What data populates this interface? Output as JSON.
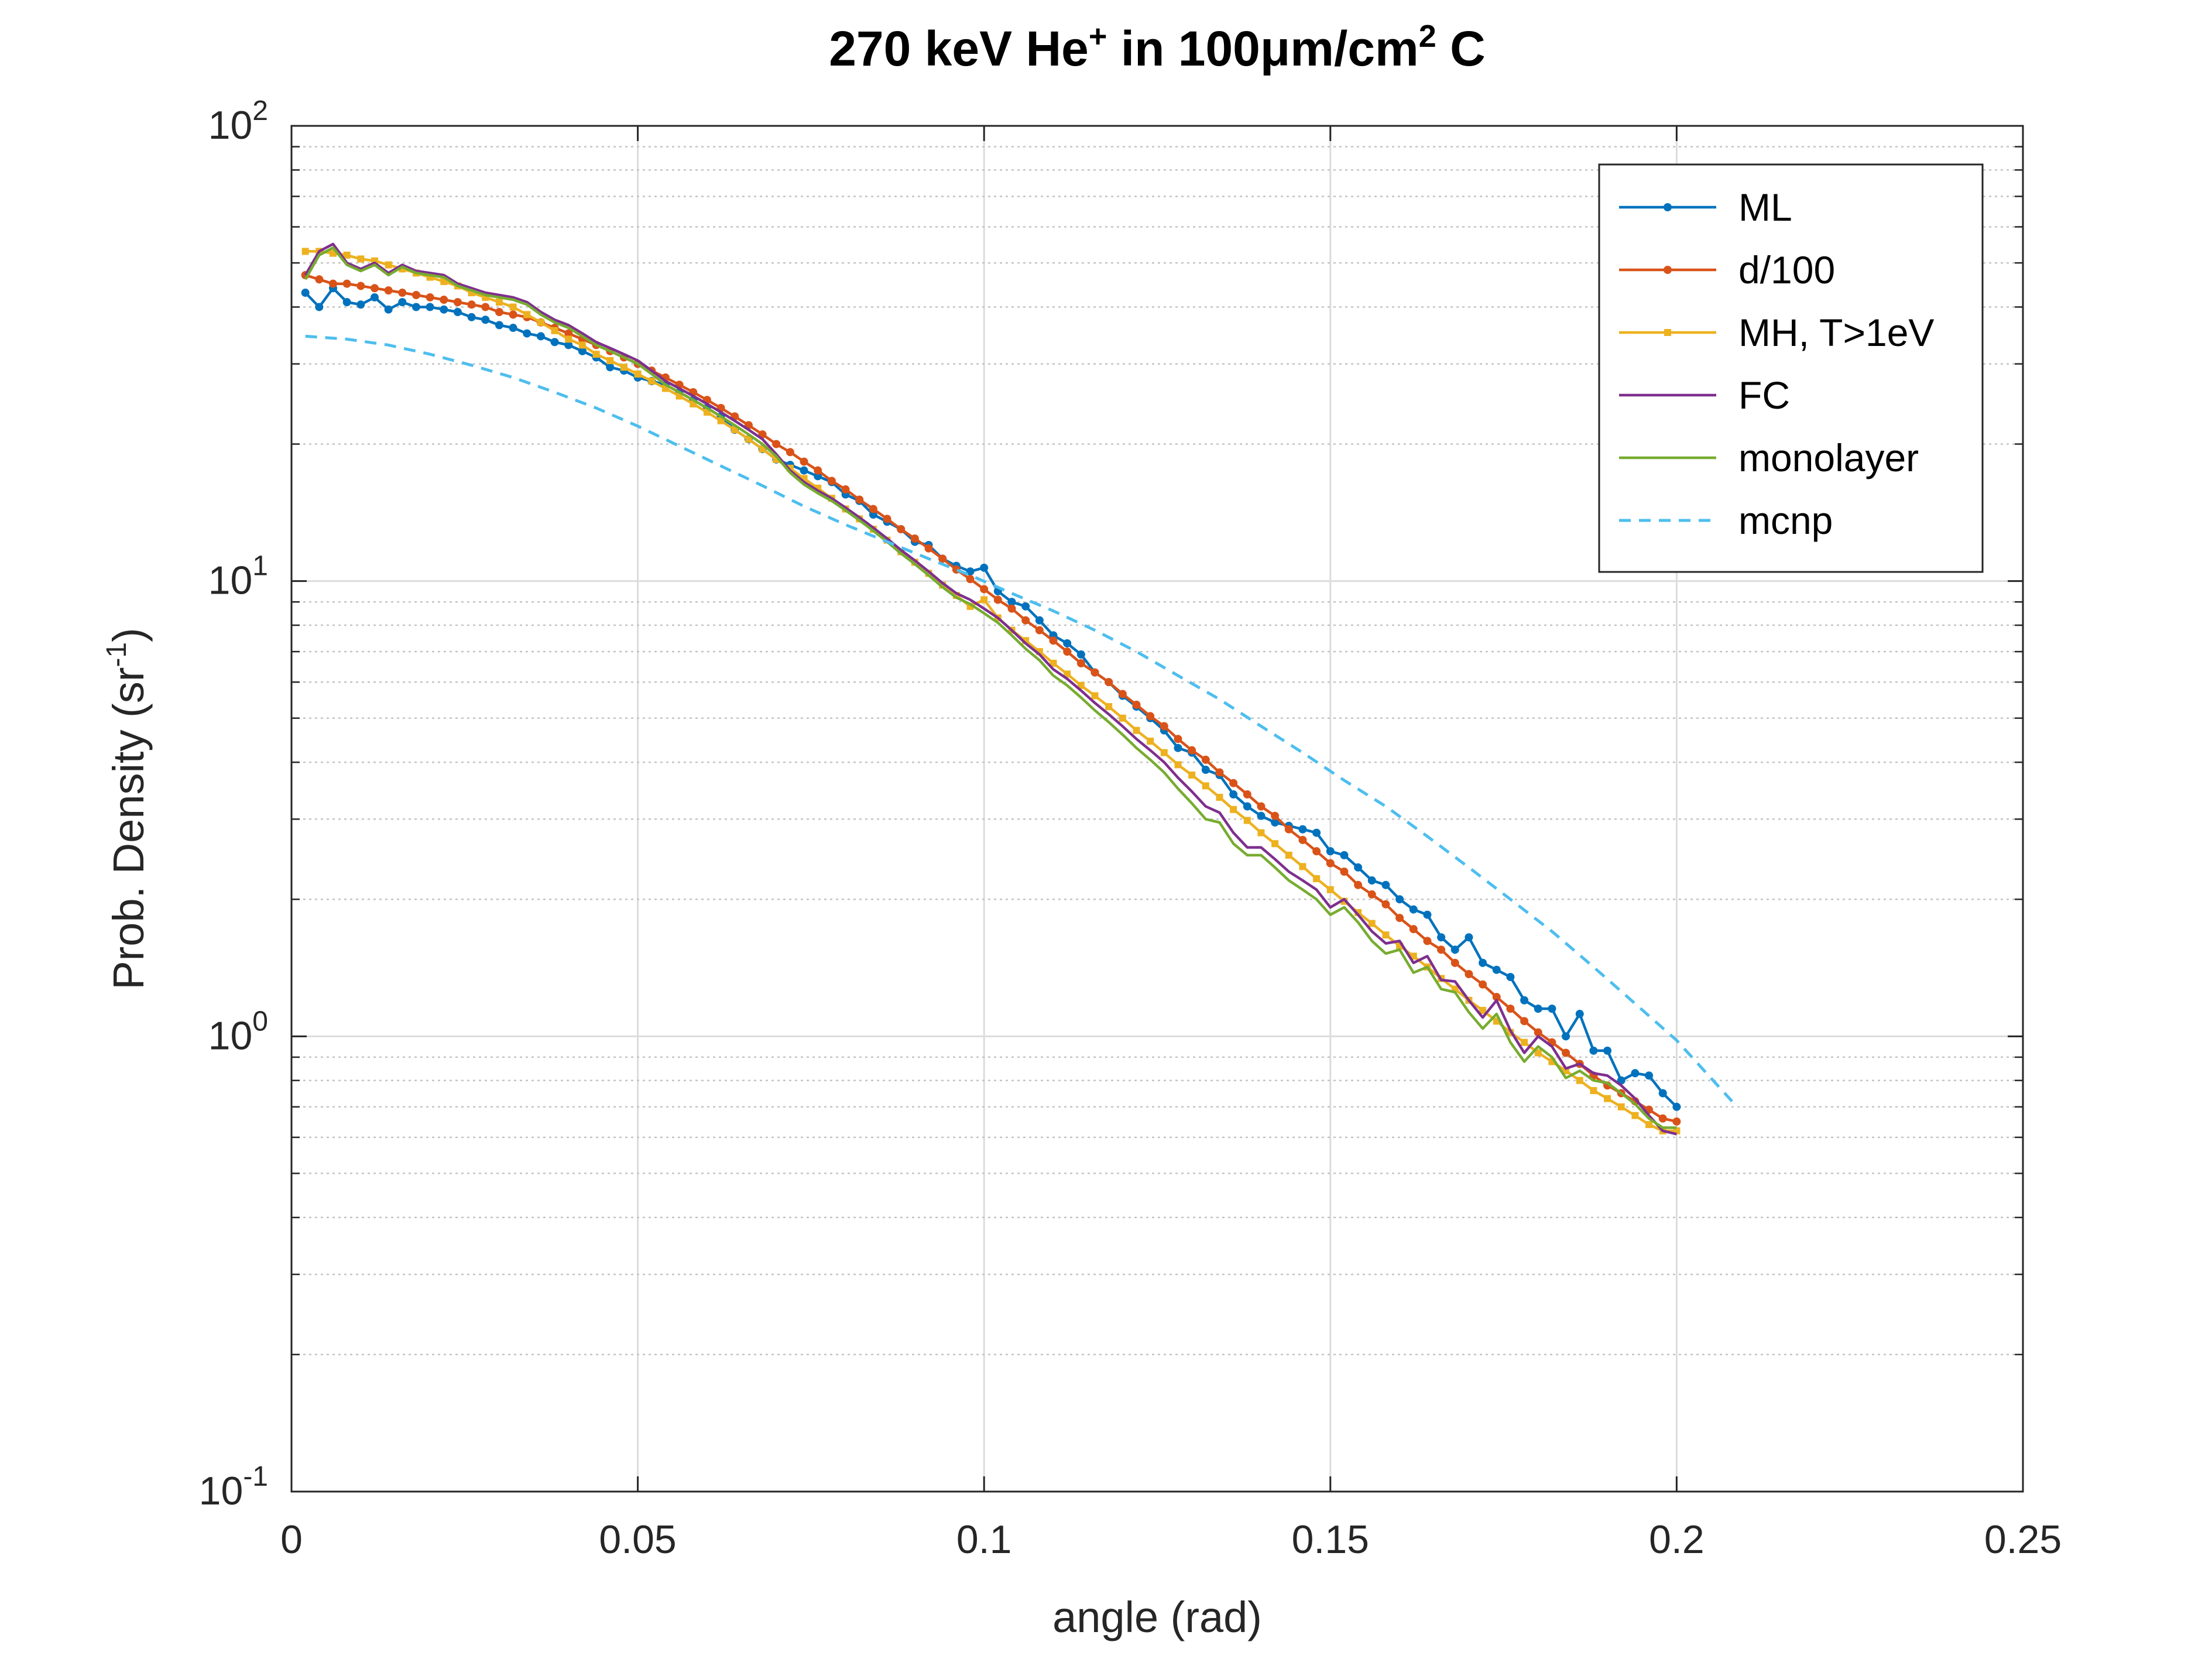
{
  "chart_data": {
    "type": "line",
    "title": "270 keV He⁺ in 100μm/cm² C",
    "xlabel": "angle (rad)",
    "ylabel": "Prob. Density (sr⁻¹)",
    "xlim": [
      0,
      0.25
    ],
    "ylim": [
      0.1,
      100
    ],
    "yscale": "log",
    "grid": true,
    "legend_position": "top-right",
    "x_ticks": [
      "0",
      "0.05",
      "0.1",
      "0.15",
      "0.2",
      "0.25"
    ],
    "y_ticks": [
      {
        "base": "10",
        "exp": "-1",
        "value": 0.1
      },
      {
        "base": "10",
        "exp": "0",
        "value": 1
      },
      {
        "base": "10",
        "exp": "1",
        "value": 10
      },
      {
        "base": "10",
        "exp": "2",
        "value": 100
      }
    ],
    "series": [
      {
        "name": "ML",
        "color": "#0072BD",
        "style": "solid",
        "marker": "dot",
        "x": [
          0.002,
          0.004,
          0.006,
          0.008,
          0.01,
          0.012,
          0.014,
          0.016,
          0.018,
          0.02,
          0.022,
          0.024,
          0.026,
          0.028,
          0.03,
          0.032,
          0.034,
          0.036,
          0.038,
          0.04,
          0.042,
          0.044,
          0.046,
          0.048,
          0.05,
          0.052,
          0.054,
          0.056,
          0.058,
          0.06,
          0.062,
          0.064,
          0.066,
          0.068,
          0.07,
          0.072,
          0.074,
          0.076,
          0.078,
          0.08,
          0.082,
          0.084,
          0.086,
          0.088,
          0.09,
          0.092,
          0.094,
          0.096,
          0.098,
          0.1,
          0.102,
          0.104,
          0.106,
          0.108,
          0.11,
          0.112,
          0.114,
          0.116,
          0.118,
          0.12,
          0.122,
          0.124,
          0.126,
          0.128,
          0.13,
          0.132,
          0.134,
          0.136,
          0.138,
          0.14,
          0.142,
          0.144,
          0.146,
          0.148,
          0.15,
          0.152,
          0.154,
          0.156,
          0.158,
          0.16,
          0.162,
          0.164,
          0.166,
          0.168,
          0.17,
          0.172,
          0.174,
          0.176,
          0.178,
          0.18,
          0.182,
          0.184,
          0.186,
          0.188,
          0.19,
          0.192,
          0.194,
          0.196,
          0.198,
          0.2
        ],
        "y": [
          43,
          40,
          44,
          41,
          40.5,
          42,
          39.5,
          41,
          40,
          40,
          39.5,
          39,
          38,
          37.5,
          36.5,
          36,
          35,
          34.5,
          33.5,
          33,
          32,
          31,
          29.5,
          29,
          28,
          27.5,
          27,
          26,
          25,
          24,
          23,
          21.5,
          20.5,
          19.5,
          18.5,
          18,
          17.5,
          17,
          16.5,
          15.5,
          15,
          14,
          13.5,
          13,
          12.2,
          12,
          11.2,
          10.8,
          10.5,
          10.7,
          9.5,
          9,
          8.8,
          8.2,
          7.6,
          7.3,
          6.9,
          6.3,
          6.0,
          5.6,
          5.3,
          5.0,
          4.7,
          4.3,
          4.2,
          3.85,
          3.75,
          3.4,
          3.2,
          3.05,
          2.95,
          2.9,
          2.85,
          2.8,
          2.55,
          2.5,
          2.35,
          2.2,
          2.15,
          2.0,
          1.9,
          1.85,
          1.65,
          1.55,
          1.65,
          1.45,
          1.4,
          1.35,
          1.2,
          1.15,
          1.15,
          1.0,
          1.12,
          0.93,
          0.93,
          0.8,
          0.83,
          0.82,
          0.75,
          0.7
        ]
      },
      {
        "name": "d/100",
        "color": "#D95319",
        "style": "solid",
        "marker": "dot",
        "x": [
          0.002,
          0.004,
          0.006,
          0.008,
          0.01,
          0.012,
          0.014,
          0.016,
          0.018,
          0.02,
          0.022,
          0.024,
          0.026,
          0.028,
          0.03,
          0.032,
          0.034,
          0.036,
          0.038,
          0.04,
          0.042,
          0.044,
          0.046,
          0.048,
          0.05,
          0.052,
          0.054,
          0.056,
          0.058,
          0.06,
          0.062,
          0.064,
          0.066,
          0.068,
          0.07,
          0.072,
          0.074,
          0.076,
          0.078,
          0.08,
          0.082,
          0.084,
          0.086,
          0.088,
          0.09,
          0.092,
          0.094,
          0.096,
          0.098,
          0.1,
          0.102,
          0.104,
          0.106,
          0.108,
          0.11,
          0.112,
          0.114,
          0.116,
          0.118,
          0.12,
          0.122,
          0.124,
          0.126,
          0.128,
          0.13,
          0.132,
          0.134,
          0.136,
          0.138,
          0.14,
          0.142,
          0.144,
          0.146,
          0.148,
          0.15,
          0.152,
          0.154,
          0.156,
          0.158,
          0.16,
          0.162,
          0.164,
          0.166,
          0.168,
          0.17,
          0.172,
          0.174,
          0.176,
          0.178,
          0.18,
          0.182,
          0.184,
          0.186,
          0.188,
          0.19,
          0.192,
          0.194,
          0.196,
          0.198,
          0.2
        ],
        "y": [
          47,
          46,
          45,
          45,
          44.5,
          44,
          43.5,
          43,
          42.5,
          42,
          41.5,
          41,
          40.5,
          40,
          39,
          38.5,
          38,
          37,
          36,
          35,
          34,
          33,
          32,
          31,
          30,
          29,
          28,
          27,
          26,
          25,
          24,
          23,
          22,
          21,
          20,
          19.2,
          18.3,
          17.5,
          16.6,
          15.9,
          15.1,
          14.4,
          13.7,
          13.0,
          12.4,
          11.8,
          11.2,
          10.6,
          10.1,
          9.6,
          9.1,
          8.7,
          8.2,
          7.8,
          7.4,
          7.0,
          6.6,
          6.3,
          6.0,
          5.65,
          5.35,
          5.05,
          4.8,
          4.5,
          4.25,
          4.05,
          3.8,
          3.6,
          3.4,
          3.2,
          3.05,
          2.85,
          2.7,
          2.55,
          2.4,
          2.3,
          2.15,
          2.05,
          1.95,
          1.82,
          1.72,
          1.62,
          1.55,
          1.45,
          1.37,
          1.3,
          1.22,
          1.15,
          1.08,
          1.02,
          0.97,
          0.92,
          0.87,
          0.82,
          0.78,
          0.75,
          0.72,
          0.69,
          0.66,
          0.65
        ]
      },
      {
        "name": "MH, T>1eV",
        "color": "#EDB120",
        "style": "solid",
        "marker": "square",
        "x": [
          0.002,
          0.004,
          0.006,
          0.008,
          0.01,
          0.012,
          0.014,
          0.016,
          0.018,
          0.02,
          0.022,
          0.024,
          0.026,
          0.028,
          0.03,
          0.032,
          0.034,
          0.036,
          0.038,
          0.04,
          0.042,
          0.044,
          0.046,
          0.048,
          0.05,
          0.052,
          0.054,
          0.056,
          0.058,
          0.06,
          0.062,
          0.064,
          0.066,
          0.068,
          0.07,
          0.072,
          0.074,
          0.076,
          0.078,
          0.08,
          0.082,
          0.084,
          0.086,
          0.088,
          0.09,
          0.092,
          0.094,
          0.096,
          0.098,
          0.1,
          0.102,
          0.104,
          0.106,
          0.108,
          0.11,
          0.112,
          0.114,
          0.116,
          0.118,
          0.12,
          0.122,
          0.124,
          0.126,
          0.128,
          0.13,
          0.132,
          0.134,
          0.136,
          0.138,
          0.14,
          0.142,
          0.144,
          0.146,
          0.148,
          0.15,
          0.152,
          0.154,
          0.156,
          0.158,
          0.16,
          0.162,
          0.164,
          0.166,
          0.168,
          0.17,
          0.172,
          0.174,
          0.176,
          0.178,
          0.18,
          0.182,
          0.184,
          0.186,
          0.188,
          0.19,
          0.192,
          0.194,
          0.196,
          0.198,
          0.2
        ],
        "y": [
          53,
          53,
          52.5,
          52,
          51,
          50.5,
          49.5,
          48.5,
          47.5,
          46.5,
          45.5,
          44.5,
          43,
          42,
          41,
          40,
          38.5,
          37,
          35.5,
          34,
          33,
          31.5,
          30.5,
          29.5,
          28.5,
          27.5,
          26.5,
          25.5,
          24.5,
          23.5,
          22.5,
          21.5,
          20.5,
          19.5,
          18.5,
          17.7,
          16.8,
          16.0,
          15.2,
          14.4,
          13.7,
          13.0,
          12.3,
          11.6,
          11.0,
          10.4,
          9.8,
          9.3,
          8.8,
          9.1,
          8.3,
          7.8,
          7.4,
          7.0,
          6.6,
          6.25,
          5.9,
          5.6,
          5.3,
          5.0,
          4.7,
          4.45,
          4.2,
          3.95,
          3.75,
          3.55,
          3.35,
          3.15,
          2.98,
          2.8,
          2.65,
          2.5,
          2.36,
          2.22,
          2.1,
          1.98,
          1.87,
          1.77,
          1.67,
          1.58,
          1.5,
          1.42,
          1.34,
          1.27,
          1.2,
          1.14,
          1.08,
          1.02,
          0.97,
          0.92,
          0.88,
          0.84,
          0.8,
          0.76,
          0.73,
          0.7,
          0.67,
          0.64,
          0.62,
          0.62
        ]
      },
      {
        "name": "FC",
        "color": "#7E2F8E",
        "style": "solid",
        "marker": "none",
        "x": [
          0.002,
          0.004,
          0.006,
          0.008,
          0.01,
          0.012,
          0.014,
          0.016,
          0.018,
          0.02,
          0.022,
          0.024,
          0.026,
          0.028,
          0.03,
          0.032,
          0.034,
          0.036,
          0.038,
          0.04,
          0.042,
          0.044,
          0.046,
          0.048,
          0.05,
          0.052,
          0.054,
          0.056,
          0.058,
          0.06,
          0.062,
          0.064,
          0.066,
          0.068,
          0.07,
          0.072,
          0.074,
          0.076,
          0.078,
          0.08,
          0.082,
          0.084,
          0.086,
          0.088,
          0.09,
          0.092,
          0.094,
          0.096,
          0.098,
          0.1,
          0.102,
          0.104,
          0.106,
          0.108,
          0.11,
          0.112,
          0.114,
          0.116,
          0.118,
          0.12,
          0.122,
          0.124,
          0.126,
          0.128,
          0.13,
          0.132,
          0.134,
          0.136,
          0.138,
          0.14,
          0.142,
          0.144,
          0.146,
          0.148,
          0.15,
          0.152,
          0.154,
          0.156,
          0.158,
          0.16,
          0.162,
          0.164,
          0.166,
          0.168,
          0.17,
          0.172,
          0.174,
          0.176,
          0.178,
          0.18,
          0.182,
          0.184,
          0.186,
          0.188,
          0.19,
          0.192,
          0.194,
          0.196,
          0.198,
          0.2
        ],
        "y": [
          47,
          53,
          55,
          50,
          48.5,
          50,
          47.5,
          49.5,
          48,
          47.5,
          47,
          45,
          44,
          43,
          42.5,
          42,
          41,
          39,
          37.5,
          36.5,
          35,
          33.5,
          32.5,
          31.5,
          30.5,
          29,
          27.5,
          26.5,
          25.5,
          24.5,
          23.5,
          22.5,
          21.5,
          20.5,
          19,
          17.5,
          16.5,
          15.8,
          15.2,
          14.5,
          13.8,
          13.1,
          12.4,
          11.7,
          11.1,
          10.5,
          9.9,
          9.4,
          9.1,
          8.7,
          8.3,
          7.8,
          7.3,
          6.9,
          6.4,
          6.1,
          5.75,
          5.4,
          5.1,
          4.8,
          4.5,
          4.25,
          4.0,
          3.7,
          3.45,
          3.2,
          3.1,
          2.8,
          2.6,
          2.6,
          2.45,
          2.3,
          2.2,
          2.1,
          1.92,
          2.0,
          1.85,
          1.7,
          1.6,
          1.62,
          1.45,
          1.5,
          1.33,
          1.32,
          1.2,
          1.1,
          1.2,
          1.03,
          0.92,
          1.0,
          0.95,
          0.85,
          0.87,
          0.83,
          0.82,
          0.78,
          0.73,
          0.67,
          0.62,
          0.61
        ]
      },
      {
        "name": "monolayer",
        "color": "#77AC30",
        "style": "solid",
        "marker": "none",
        "x": [
          0.002,
          0.004,
          0.006,
          0.008,
          0.01,
          0.012,
          0.014,
          0.016,
          0.018,
          0.02,
          0.022,
          0.024,
          0.026,
          0.028,
          0.03,
          0.032,
          0.034,
          0.036,
          0.038,
          0.04,
          0.042,
          0.044,
          0.046,
          0.048,
          0.05,
          0.052,
          0.054,
          0.056,
          0.058,
          0.06,
          0.062,
          0.064,
          0.066,
          0.068,
          0.07,
          0.072,
          0.074,
          0.076,
          0.078,
          0.08,
          0.082,
          0.084,
          0.086,
          0.088,
          0.09,
          0.092,
          0.094,
          0.096,
          0.098,
          0.1,
          0.102,
          0.104,
          0.106,
          0.108,
          0.11,
          0.112,
          0.114,
          0.116,
          0.118,
          0.12,
          0.122,
          0.124,
          0.126,
          0.128,
          0.13,
          0.132,
          0.134,
          0.136,
          0.138,
          0.14,
          0.142,
          0.144,
          0.146,
          0.148,
          0.15,
          0.152,
          0.154,
          0.156,
          0.158,
          0.16,
          0.162,
          0.164,
          0.166,
          0.168,
          0.17,
          0.172,
          0.174,
          0.176,
          0.178,
          0.18,
          0.182,
          0.184,
          0.186,
          0.188,
          0.19,
          0.192,
          0.194,
          0.196,
          0.198,
          0.2
        ],
        "y": [
          46,
          52,
          54,
          49.5,
          48,
          49.5,
          47,
          49,
          47.5,
          47,
          46.5,
          44.5,
          43.5,
          42.5,
          42,
          41.5,
          40.5,
          38.5,
          37,
          36,
          34.5,
          33,
          32,
          31,
          30,
          28.5,
          27,
          26,
          25,
          24,
          23,
          22,
          21,
          20,
          18.8,
          17.3,
          16.3,
          15.6,
          15.0,
          14.3,
          13.6,
          12.9,
          12.2,
          11.5,
          10.9,
          10.3,
          9.7,
          9.2,
          8.9,
          8.5,
          8.1,
          7.6,
          7.1,
          6.7,
          6.2,
          5.9,
          5.55,
          5.2,
          4.9,
          4.6,
          4.3,
          4.05,
          3.8,
          3.5,
          3.25,
          3.0,
          2.95,
          2.65,
          2.5,
          2.5,
          2.35,
          2.2,
          2.1,
          2.0,
          1.85,
          1.92,
          1.78,
          1.62,
          1.52,
          1.55,
          1.38,
          1.42,
          1.27,
          1.25,
          1.13,
          1.04,
          1.12,
          0.97,
          0.88,
          0.95,
          0.9,
          0.81,
          0.84,
          0.8,
          0.79,
          0.75,
          0.71,
          0.66,
          0.63,
          0.63
        ]
      },
      {
        "name": "mcnp",
        "color": "#4DBEEE",
        "style": "dashed",
        "marker": "none",
        "x": [
          0.002,
          0.008,
          0.014,
          0.02,
          0.026,
          0.032,
          0.038,
          0.044,
          0.05,
          0.056,
          0.062,
          0.068,
          0.074,
          0.08,
          0.086,
          0.092,
          0.098,
          0.104,
          0.11,
          0.116,
          0.122,
          0.128,
          0.134,
          0.14,
          0.146,
          0.152,
          0.158,
          0.164,
          0.17,
          0.176,
          0.182,
          0.188,
          0.194,
          0.2,
          0.208
        ],
        "y": [
          34.5,
          34,
          33,
          31.5,
          29.8,
          28,
          26,
          24,
          21.9,
          19.8,
          17.9,
          16.2,
          14.6,
          13.3,
          12.2,
          11.2,
          10.3,
          9.4,
          8.6,
          7.8,
          7.0,
          6.2,
          5.5,
          4.8,
          4.2,
          3.65,
          3.2,
          2.75,
          2.35,
          2.0,
          1.7,
          1.42,
          1.18,
          0.98,
          0.72
        ]
      }
    ]
  }
}
